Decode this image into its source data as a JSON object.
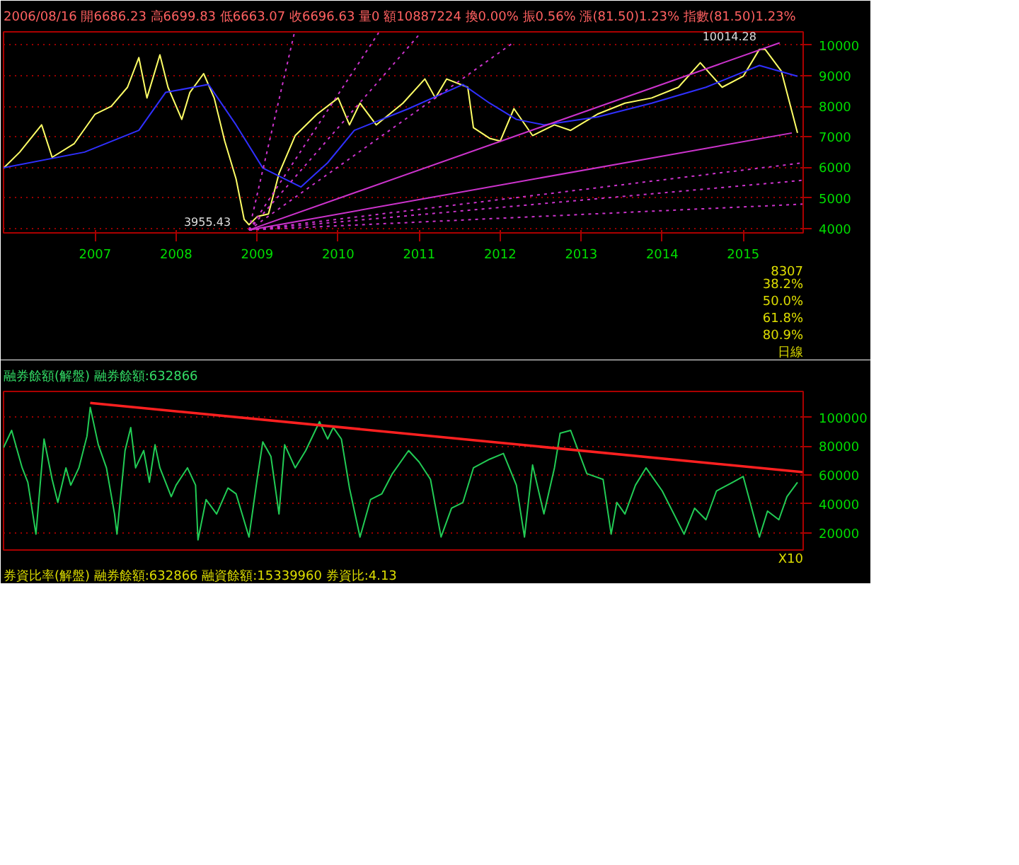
{
  "chart_data": [
    {
      "type": "line",
      "title": "2006/08/16 開6686.23 高6699.83 低6663.07 收6696.63 量0 額10887224 換0.00% 振0.56% 漲(81.50)1.23% 指數(81.50)1.23%",
      "xlim": [
        2005.87,
        2015.74
      ],
      "xticks": [
        2007,
        2008,
        2009,
        2010,
        2011,
        2012,
        2013,
        2014,
        2015
      ],
      "ylim": [
        3860,
        10430
      ],
      "yticks": [
        4000,
        5000,
        6000,
        7000,
        8000,
        9000,
        10000
      ],
      "grid": "y",
      "line_style": "solid",
      "annotations": [
        {
          "text": "10014.28",
          "x": 2015.3,
          "y": 10014
        },
        {
          "text": "3955.43",
          "x": 2008.9,
          "y": 3955
        },
        "8307",
        "38.2%",
        "50.0%",
        "61.8%",
        "80.9%",
        "日線"
      ],
      "series": [
        {
          "color": "#ffff66",
          "x": [
            2005.87,
            2006.07,
            2006.34,
            2006.47,
            2006.74,
            2007.0,
            2007.2,
            2007.4,
            2007.54,
            2007.64,
            2007.8,
            2007.9,
            2008.07,
            2008.17,
            2008.34,
            2008.47,
            2008.6,
            2008.74,
            2008.84,
            2008.9,
            2009.0,
            2009.14,
            2009.27,
            2009.47,
            2009.74,
            2010.0,
            2010.14,
            2010.27,
            2010.47,
            2010.8,
            2011.07,
            2011.2,
            2011.34,
            2011.6,
            2011.67,
            2011.87,
            2012.0,
            2012.17,
            2012.4,
            2012.67,
            2012.87,
            2013.2,
            2013.54,
            2013.87,
            2014.2,
            2014.47,
            2014.74,
            2015.0,
            2015.2,
            2015.27,
            2015.47,
            2015.67
          ],
          "values": [
            5978,
            6500,
            7390,
            6330,
            6770,
            7740,
            8000,
            8620,
            9590,
            8270,
            9680,
            8620,
            7570,
            8450,
            9065,
            8270,
            6860,
            5625,
            4300,
            4125,
            4390,
            4480,
            5800,
            7040,
            7740,
            8270,
            7390,
            8100,
            7390,
            8100,
            8890,
            8270,
            8890,
            8620,
            7300,
            6950,
            6860,
            7920,
            7040,
            7390,
            7210,
            7740,
            8100,
            8270,
            8620,
            9420,
            8620,
            8980,
            9860,
            9860,
            9150,
            7125
          ]
        },
        {
          "color": "#3030ff",
          "x": [
            2005.87,
            2006.87,
            2007.54,
            2007.87,
            2008.4,
            2008.74,
            2009.07,
            2009.54,
            2009.87,
            2010.2,
            2010.87,
            2011.54,
            2011.87,
            2012.2,
            2012.54,
            2013.2,
            2013.87,
            2014.54,
            2015.2,
            2015.67
          ],
          "values": [
            5990,
            6500,
            7210,
            8450,
            8710,
            7390,
            5980,
            5360,
            6150,
            7210,
            7920,
            8710,
            8100,
            7570,
            7390,
            7650,
            8100,
            8620,
            9330,
            8980
          ]
        },
        {
          "color": "#cc33cc",
          "x": [
            2008.9,
            2015.45
          ],
          "values": [
            3955,
            10070
          ]
        },
        {
          "color": "#cc33cc",
          "x": [
            2008.9,
            2015.6
          ],
          "values": [
            3955,
            7125
          ]
        },
        {
          "color": "#cc33cc",
          "line_style": "dotted",
          "x": [
            2008.9,
            2009.46
          ],
          "values": [
            3955,
            10400
          ]
        },
        {
          "color": "#cc33cc",
          "line_style": "dotted",
          "x": [
            2008.9,
            2010.5
          ],
          "values": [
            3955,
            10400
          ]
        },
        {
          "color": "#cc33cc",
          "line_style": "dotted",
          "x": [
            2008.9,
            2011.02
          ],
          "values": [
            3955,
            10400
          ]
        },
        {
          "color": "#cc33cc",
          "line_style": "dotted",
          "x": [
            2008.9,
            2012.14
          ],
          "values": [
            3955,
            10035
          ]
        },
        {
          "color": "#cc33cc",
          "line_style": "dotted",
          "x": [
            2008.9,
            2015.74
          ],
          "values": [
            3955,
            6150
          ]
        },
        {
          "color": "#cc33cc",
          "line_style": "dotted",
          "x": [
            2008.9,
            2015.74
          ],
          "values": [
            3955,
            5580
          ]
        },
        {
          "color": "#cc33cc",
          "line_style": "dotted",
          "x": [
            2008.9,
            2015.74
          ],
          "values": [
            3955,
            4800
          ]
        }
      ]
    },
    {
      "type": "line",
      "title": "融券餘額(解盤) 融券餘額:632866",
      "xlim": [
        2005.87,
        2015.74
      ],
      "ylim": [
        8000,
        118000
      ],
      "yticks": [
        20000,
        40000,
        60000,
        80000,
        100000
      ],
      "grid": "y",
      "tick_labels": "y",
      "line_style": "solid",
      "annotations": [
        "X10",
        "券資比率(解盤) 融券餘額:632866 融資餘額:15339960 券資比:4.13"
      ],
      "series": [
        {
          "color": "#22cc55",
          "x": [
            2005.87,
            2005.97,
            2006.1,
            2006.17,
            2006.27,
            2006.37,
            2006.47,
            2006.54,
            2006.64,
            2006.7,
            2006.8,
            2006.9,
            2006.94,
            2007.04,
            2007.14,
            2007.24,
            2007.27,
            2007.37,
            2007.44,
            2007.5,
            2007.6,
            2007.67,
            2007.74,
            2007.8,
            2007.94,
            2008.0,
            2008.14,
            2008.24,
            2008.27,
            2008.37,
            2008.5,
            2008.64,
            2008.74,
            2008.9,
            2009.0,
            2009.07,
            2009.17,
            2009.27,
            2009.34,
            2009.47,
            2009.6,
            2009.77,
            2009.87,
            2009.94,
            2010.04,
            2010.14,
            2010.27,
            2010.4,
            2010.54,
            2010.67,
            2010.87,
            2011.0,
            2011.14,
            2011.27,
            2011.4,
            2011.54,
            2011.67,
            2011.87,
            2012.04,
            2012.2,
            2012.3,
            2012.4,
            2012.54,
            2012.67,
            2012.74,
            2012.87,
            2013.07,
            2013.27,
            2013.37,
            2013.44,
            2013.54,
            2013.67,
            2013.8,
            2014.0,
            2014.27,
            2014.4,
            2014.54,
            2014.67,
            2014.87,
            2015.0,
            2015.2,
            2015.3,
            2015.44,
            2015.54,
            2015.67
          ],
          "values": [
            79000,
            91000,
            65000,
            55000,
            19000,
            85000,
            57000,
            41000,
            65000,
            53000,
            65000,
            87000,
            107000,
            81000,
            65000,
            33000,
            19000,
            77000,
            93000,
            65000,
            77000,
            55000,
            81000,
            65000,
            45000,
            53000,
            65000,
            53000,
            15000,
            43000,
            33000,
            51000,
            47000,
            17000,
            57000,
            83000,
            73000,
            33000,
            81000,
            65000,
            77000,
            97000,
            85000,
            93000,
            85000,
            51000,
            17000,
            43000,
            47000,
            61000,
            77000,
            69000,
            57000,
            17000,
            37000,
            41000,
            65000,
            71000,
            75000,
            53000,
            17000,
            67000,
            33000,
            65000,
            89000,
            91000,
            61000,
            57000,
            19000,
            41000,
            33000,
            53000,
            65000,
            49000,
            19000,
            37000,
            29000,
            49000,
            55000,
            59000,
            17000,
            35000,
            29000,
            45000,
            55000
          ]
        },
        {
          "color": "#ff2020",
          "x": [
            2006.94,
            2015.74
          ],
          "values": [
            110000,
            62000
          ]
        }
      ]
    }
  ]
}
